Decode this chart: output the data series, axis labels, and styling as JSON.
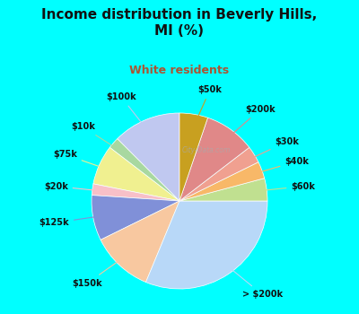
{
  "title": "Income distribution in Beverly Hills,\nMI (%)",
  "subtitle": "White residents",
  "bg_cyan": "#00FFFF",
  "bg_chart": "#e8f5ee",
  "labels": [
    "$100k",
    "$10k",
    "$75k",
    "$20k",
    "$125k",
    "$150k",
    "> $200k",
    "$60k",
    "$40k",
    "$30k",
    "$200k",
    "$50k"
  ],
  "values": [
    12,
    2,
    7,
    2,
    8,
    11,
    30,
    4,
    3,
    3,
    9,
    5
  ],
  "colors": [
    "#c0c8f0",
    "#a8d8a0",
    "#f0f090",
    "#f8c0c8",
    "#8090d8",
    "#f8c8a0",
    "#b8d8f8",
    "#c0e090",
    "#f8b868",
    "#f0a090",
    "#e08888",
    "#c8a020"
  ],
  "startangle": 90,
  "title_fontsize": 11,
  "subtitle_fontsize": 9,
  "label_fontsize": 7
}
